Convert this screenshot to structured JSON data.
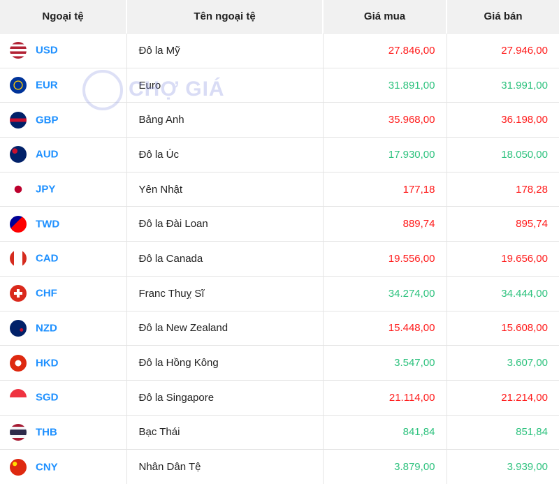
{
  "headers": [
    "Ngoại tệ",
    "Tên ngoại tệ",
    "Giá mua",
    "Giá bán"
  ],
  "watermark": "CHỢ GIÁ",
  "colors": {
    "up": "#2ec27e",
    "down": "#ff1a1a",
    "code": "#1e90ff"
  },
  "rows": [
    {
      "code": "USD",
      "name": "Đô la Mỹ",
      "buy": "27.846,00",
      "sell": "27.946,00",
      "trend": "down",
      "flag": "linear-gradient(#b22234 0 14%,#fff 14% 28%,#b22234 28% 42%,#fff 42% 57%,#b22234 57% 71%,#fff 71% 85%,#b22234 85%)"
    },
    {
      "code": "EUR",
      "name": "Euro",
      "buy": "31.891,00",
      "sell": "31.991,00",
      "trend": "up",
      "flag": "radial-gradient(circle,#003399 30%,#ffcc00 32% 38%,#003399 40%)"
    },
    {
      "code": "GBP",
      "name": "Bảng Anh",
      "buy": "35.968,00",
      "sell": "36.198,00",
      "trend": "down",
      "flag": "linear-gradient(#012169 40%,#c8102e 40% 60%,#012169 60%)"
    },
    {
      "code": "AUD",
      "name": "Đô la Úc",
      "buy": "17.930,00",
      "sell": "18.050,00",
      "trend": "up",
      "flag": "radial-gradient(circle at 30% 30%,#c8102e 15%,#012169 17%)"
    },
    {
      "code": "JPY",
      "name": "Yên Nhật",
      "buy": "177,18",
      "sell": "178,28",
      "trend": "down",
      "flag": "radial-gradient(circle,#bc002d 30%,#fff 32%)"
    },
    {
      "code": "TWD",
      "name": "Đô la Đài Loan",
      "buy": "889,74",
      "sell": "895,74",
      "trend": "down",
      "flag": "linear-gradient(135deg,#000095 40%,#fe0000 40%)"
    },
    {
      "code": "CAD",
      "name": "Đô la Canada",
      "buy": "19.556,00",
      "sell": "19.656,00",
      "trend": "down",
      "flag": "linear-gradient(90deg,#d52b1e 25%,#fff 25% 75%,#d52b1e 75%)"
    },
    {
      "code": "CHF",
      "name": "Franc Thuỵ Sĩ",
      "buy": "34.274,00",
      "sell": "34.444,00",
      "trend": "up",
      "flag": "linear-gradient(#fff,#fff) center/12px 4px no-repeat,linear-gradient(#fff,#fff) center/4px 12px no-repeat,#da291c"
    },
    {
      "code": "NZD",
      "name": "Đô la New Zealand",
      "buy": "15.448,00",
      "sell": "15.608,00",
      "trend": "down",
      "flag": "radial-gradient(circle at 70% 60%,#c8102e 10%,#012169 12%)"
    },
    {
      "code": "HKD",
      "name": "Đô la Hồng Kông",
      "buy": "3.547,00",
      "sell": "3.607,00",
      "trend": "up",
      "flag": "radial-gradient(circle,#fff 25%,#de2910 27%)"
    },
    {
      "code": "SGD",
      "name": "Đô la Singapore",
      "buy": "21.114,00",
      "sell": "21.214,00",
      "trend": "down",
      "flag": "linear-gradient(#ef3340 50%,#fff 50%)"
    },
    {
      "code": "THB",
      "name": "Bạc Thái",
      "buy": "841,84",
      "sell": "851,84",
      "trend": "up",
      "flag": "linear-gradient(#a51931 17%,#f4f5f8 17% 33%,#2d2a4a 33% 67%,#f4f5f8 67% 83%,#a51931 83%)"
    },
    {
      "code": "CNY",
      "name": "Nhân Dân Tệ",
      "buy": "3.879,00",
      "sell": "3.939,00",
      "trend": "up",
      "flag": "radial-gradient(circle at 30% 30%,#ffde00 12%,#de2910 14%)"
    }
  ]
}
